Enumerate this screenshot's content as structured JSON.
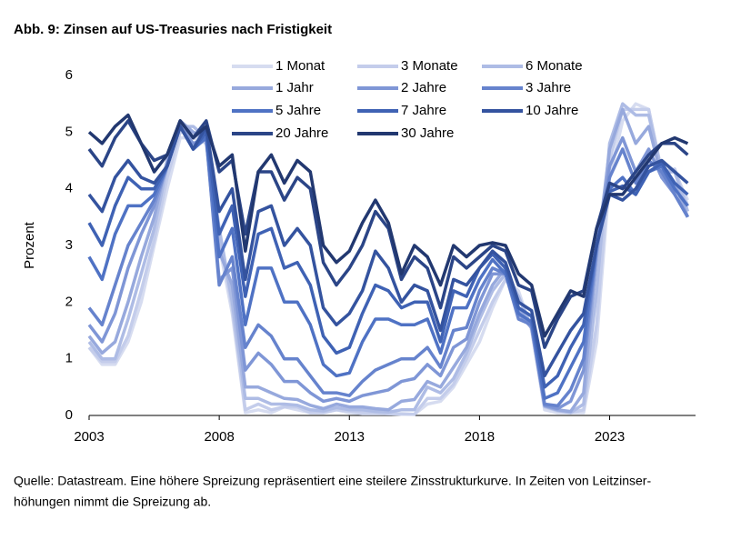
{
  "chart_data": {
    "type": "line",
    "title": "Abb. 9: Zinsen auf US-Treasuries nach Fristigkeit",
    "y_label": "Prozent",
    "note": [
      "Quelle: Datastream. Eine höhere Spreizung repräsentiert eine steilere Zinsstrukturkurve. In Zeiten von Leitzinser-",
      "höhungen nimmt die Spreizung ab."
    ],
    "xlim": [
      2003,
      2026.3
    ],
    "xticks": [
      2003,
      2008,
      2013,
      2018,
      2023
    ],
    "ylim": [
      0,
      6
    ],
    "yticks": [
      0,
      1,
      2,
      3,
      4,
      5,
      6
    ],
    "legend": "top",
    "x": [
      2003.0,
      2003.5,
      2004.0,
      2004.5,
      2005.0,
      2005.5,
      2006.0,
      2006.5,
      2007.0,
      2007.5,
      2008.0,
      2008.5,
      2009.0,
      2009.5,
      2010.0,
      2010.5,
      2011.0,
      2011.5,
      2012.0,
      2012.5,
      2013.0,
      2013.5,
      2014.0,
      2014.5,
      2015.0,
      2015.5,
      2016.0,
      2016.5,
      2017.0,
      2017.5,
      2018.0,
      2018.5,
      2019.0,
      2019.5,
      2020.0,
      2020.5,
      2021.0,
      2021.5,
      2022.0,
      2022.5,
      2023.0,
      2023.5,
      2024.0,
      2024.5,
      2025.0,
      2025.5,
      2026.0
    ],
    "series": [
      {
        "name": "1 Monat",
        "color": "#d6dcf0",
        "values": [
          1.2,
          0.9,
          0.9,
          1.3,
          2.0,
          3.0,
          4.0,
          4.9,
          4.9,
          4.8,
          3.0,
          1.8,
          0.05,
          0.1,
          0.05,
          0.15,
          0.1,
          0.05,
          0.05,
          0.1,
          0.05,
          0.03,
          0.03,
          0.03,
          0.02,
          0.02,
          0.2,
          0.25,
          0.5,
          0.9,
          1.3,
          1.9,
          2.4,
          2.2,
          1.5,
          0.1,
          0.05,
          0.05,
          0.05,
          1.3,
          4.2,
          5.2,
          5.5,
          5.4,
          4.3,
          4.3,
          3.8
        ]
      },
      {
        "name": "3 Monate",
        "color": "#c4cdeb",
        "values": [
          1.2,
          0.95,
          0.95,
          1.4,
          2.2,
          3.1,
          4.2,
          5.0,
          5.0,
          4.8,
          3.2,
          1.9,
          0.1,
          0.2,
          0.1,
          0.15,
          0.15,
          0.05,
          0.05,
          0.1,
          0.08,
          0.05,
          0.05,
          0.03,
          0.03,
          0.02,
          0.3,
          0.3,
          0.55,
          1.0,
          1.5,
          2.0,
          2.4,
          2.1,
          1.55,
          0.15,
          0.08,
          0.05,
          0.1,
          1.6,
          4.5,
          5.4,
          5.4,
          5.4,
          4.3,
          4.35,
          3.7
        ]
      },
      {
        "name": "6 Monate",
        "color": "#aebce5",
        "values": [
          1.3,
          1.0,
          1.0,
          1.7,
          2.5,
          3.3,
          4.4,
          5.1,
          5.1,
          4.9,
          3.3,
          2.0,
          0.3,
          0.3,
          0.2,
          0.2,
          0.18,
          0.1,
          0.08,
          0.14,
          0.1,
          0.1,
          0.07,
          0.06,
          0.1,
          0.1,
          0.5,
          0.4,
          0.65,
          1.1,
          1.7,
          2.2,
          2.5,
          2.1,
          1.55,
          0.16,
          0.09,
          0.05,
          0.2,
          2.2,
          4.8,
          5.5,
          5.3,
          5.3,
          4.3,
          4.3,
          3.6
        ]
      },
      {
        "name": "1 Jahr",
        "color": "#97a9dd",
        "values": [
          1.4,
          1.1,
          1.3,
          2.0,
          2.8,
          3.5,
          4.5,
          5.2,
          5.0,
          4.9,
          2.9,
          2.3,
          0.5,
          0.5,
          0.4,
          0.3,
          0.28,
          0.18,
          0.12,
          0.2,
          0.15,
          0.15,
          0.12,
          0.1,
          0.25,
          0.28,
          0.6,
          0.5,
          0.85,
          1.2,
          1.8,
          2.3,
          2.6,
          1.9,
          1.55,
          0.17,
          0.1,
          0.07,
          0.4,
          2.8,
          4.7,
          5.4,
          4.8,
          5.1,
          4.2,
          4.1,
          3.5
        ]
      },
      {
        "name": "2 Jahre",
        "color": "#7f96d6",
        "values": [
          1.6,
          1.3,
          1.8,
          2.6,
          3.2,
          3.7,
          4.4,
          5.1,
          4.8,
          4.9,
          2.4,
          2.6,
          0.8,
          1.1,
          0.9,
          0.6,
          0.6,
          0.4,
          0.25,
          0.3,
          0.25,
          0.35,
          0.4,
          0.45,
          0.6,
          0.65,
          0.9,
          0.7,
          1.2,
          1.35,
          2.0,
          2.5,
          2.5,
          1.8,
          1.55,
          0.18,
          0.12,
          0.25,
          0.8,
          2.9,
          4.4,
          4.9,
          4.3,
          4.7,
          4.2,
          3.9,
          3.5
        ]
      },
      {
        "name": "3 Jahre",
        "color": "#6683cd",
        "values": [
          1.9,
          1.6,
          2.3,
          3.0,
          3.4,
          3.8,
          4.4,
          5.1,
          4.7,
          4.9,
          2.3,
          2.8,
          1.2,
          1.6,
          1.4,
          1.0,
          1.0,
          0.7,
          0.4,
          0.4,
          0.35,
          0.6,
          0.8,
          0.9,
          1.0,
          1.0,
          1.2,
          0.85,
          1.5,
          1.55,
          2.2,
          2.6,
          2.5,
          1.7,
          1.6,
          0.2,
          0.17,
          0.45,
          1.0,
          3.0,
          4.2,
          4.7,
          4.1,
          4.5,
          4.3,
          3.9,
          3.5
        ]
      },
      {
        "name": "5 Jahre",
        "color": "#4f72c4",
        "values": [
          2.8,
          2.4,
          3.2,
          3.7,
          3.7,
          3.9,
          4.4,
          5.1,
          4.7,
          4.9,
          2.8,
          3.3,
          1.6,
          2.6,
          2.6,
          2.0,
          2.0,
          1.6,
          0.9,
          0.7,
          0.75,
          1.3,
          1.7,
          1.7,
          1.6,
          1.6,
          1.7,
          1.1,
          1.9,
          1.9,
          2.4,
          2.75,
          2.5,
          1.8,
          1.65,
          0.3,
          0.4,
          0.85,
          1.3,
          3.0,
          4.0,
          4.2,
          3.9,
          4.3,
          4.4,
          4.0,
          3.7
        ]
      },
      {
        "name": "7 Jahre",
        "color": "#3f62b4",
        "values": [
          3.4,
          3.0,
          3.7,
          4.2,
          4.0,
          4.0,
          4.4,
          5.1,
          4.7,
          5.0,
          3.2,
          3.7,
          2.1,
          3.2,
          3.3,
          2.6,
          2.7,
          2.3,
          1.4,
          1.1,
          1.2,
          1.8,
          2.3,
          2.2,
          1.9,
          2.0,
          2.0,
          1.3,
          2.2,
          2.1,
          2.6,
          2.85,
          2.6,
          1.9,
          1.75,
          0.5,
          0.7,
          1.2,
          1.6,
          3.0,
          3.95,
          4.05,
          3.9,
          4.3,
          4.45,
          4.1,
          3.9
        ]
      },
      {
        "name": "10 Jahre",
        "color": "#34539f",
        "values": [
          3.9,
          3.6,
          4.2,
          4.5,
          4.2,
          4.1,
          4.4,
          5.1,
          4.7,
          5.1,
          3.6,
          4.0,
          2.4,
          3.6,
          3.7,
          3.0,
          3.3,
          3.0,
          1.9,
          1.6,
          1.8,
          2.2,
          2.9,
          2.6,
          2.0,
          2.3,
          2.2,
          1.5,
          2.4,
          2.3,
          2.6,
          2.9,
          2.7,
          2.0,
          1.85,
          0.7,
          1.1,
          1.5,
          1.8,
          3.0,
          3.9,
          3.8,
          4.0,
          4.4,
          4.5,
          4.3,
          4.1
        ]
      },
      {
        "name": "20 Jahre",
        "color": "#2b4587",
        "values": [
          4.7,
          4.4,
          4.9,
          5.2,
          4.8,
          4.5,
          4.6,
          5.2,
          4.9,
          5.2,
          4.3,
          4.5,
          3.2,
          4.3,
          4.3,
          3.8,
          4.2,
          4.0,
          2.7,
          2.3,
          2.6,
          3.0,
          3.6,
          3.3,
          2.4,
          2.8,
          2.6,
          1.9,
          2.8,
          2.6,
          2.8,
          3.0,
          2.9,
          2.3,
          2.2,
          1.2,
          1.7,
          2.1,
          2.2,
          3.3,
          4.1,
          4.0,
          4.3,
          4.6,
          4.8,
          4.8,
          4.6
        ]
      },
      {
        "name": "30 Jahre",
        "color": "#223870",
        "values": [
          5.0,
          4.8,
          5.1,
          5.3,
          4.8,
          4.3,
          4.6,
          5.2,
          4.9,
          5.1,
          4.4,
          4.6,
          2.9,
          4.3,
          4.6,
          4.1,
          4.5,
          4.3,
          3.0,
          2.7,
          2.9,
          3.4,
          3.8,
          3.4,
          2.5,
          3.0,
          2.8,
          2.3,
          3.0,
          2.8,
          3.0,
          3.05,
          3.0,
          2.5,
          2.3,
          1.4,
          1.8,
          2.2,
          2.1,
          3.3,
          3.9,
          3.9,
          4.2,
          4.5,
          4.8,
          4.9,
          4.8
        ]
      }
    ]
  }
}
